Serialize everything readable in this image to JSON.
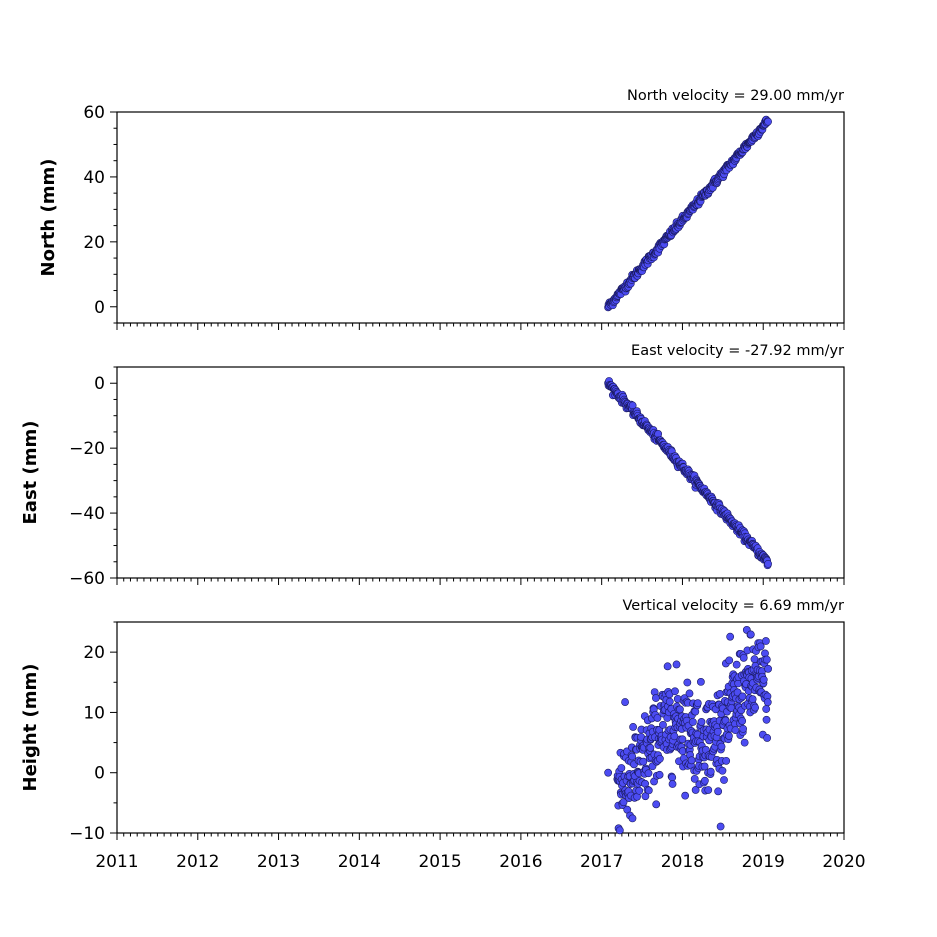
{
  "colors": {
    "marker_fill": "#4c4cf2",
    "marker_edge": "#1a1a60",
    "frame": "#000000"
  },
  "chart_data": [
    {
      "type": "scatter",
      "ylabel": "North (mm)",
      "annotation": "North velocity = 29.00 mm/yr",
      "velocity": 29.0,
      "xlim": [
        2011,
        2020
      ],
      "ylim": [
        -5,
        60
      ],
      "yticks": [
        0,
        20,
        40,
        60
      ],
      "yticks_minor_step": 5,
      "grid": false,
      "start_year": 2017.08,
      "end_year": 2019.06,
      "start_value": 0,
      "noise": 0.6,
      "count": 340
    },
    {
      "type": "scatter",
      "ylabel": "East (mm)",
      "annotation": "East velocity = -27.92 mm/yr",
      "velocity": -27.92,
      "xlim": [
        2011,
        2020
      ],
      "ylim": [
        -60,
        5
      ],
      "yticks": [
        0,
        -20,
        -40,
        -60
      ],
      "yticks_minor_step": 5,
      "grid": false,
      "start_year": 2017.08,
      "end_year": 2019.06,
      "start_value": 0,
      "noise": 0.6,
      "count": 340
    },
    {
      "type": "scatter",
      "ylabel": "Height (mm)",
      "annotation": "Vertical velocity = 6.69 mm/yr",
      "velocity": 6.69,
      "xlim": [
        2011,
        2020
      ],
      "ylim": [
        -10,
        25
      ],
      "yticks": [
        -10,
        0,
        10,
        20
      ],
      "yticks_minor_step": 5,
      "grid": false,
      "start_year": 2017.08,
      "end_year": 2019.06,
      "start_value": 0,
      "noise": 4.0,
      "count": 520
    }
  ],
  "x_axis": {
    "tick_labels": [
      "2011",
      "2012",
      "2013",
      "2014",
      "2015",
      "2016",
      "2017",
      "2018",
      "2019",
      "2020"
    ],
    "minor_per_year": 12
  }
}
